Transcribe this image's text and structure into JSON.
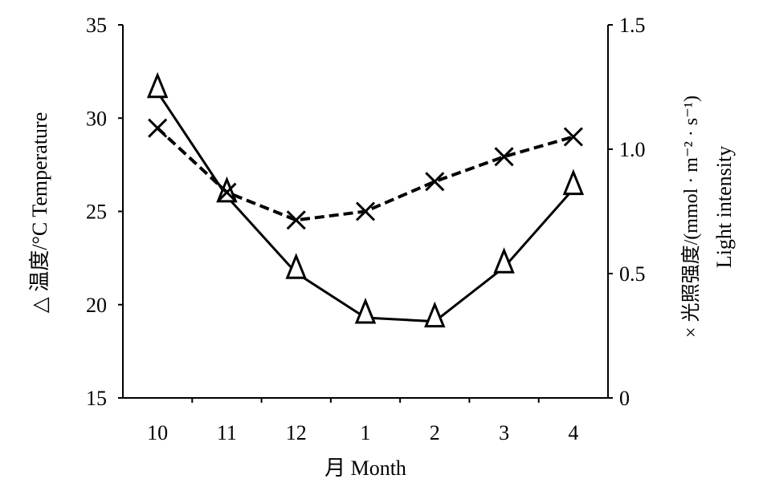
{
  "chart_data": {
    "type": "line",
    "categories": [
      "10",
      "11",
      "12",
      "1",
      "2",
      "3",
      "4"
    ],
    "xlabel": "月 Month",
    "ylabel_left": "△ 温度/°C Temperature",
    "ylabel_right_1": "× 光照强度/(mmol · m⁻² · s⁻¹)",
    "ylabel_right_2": "Light intensity",
    "ylim_left": [
      15,
      35
    ],
    "yticks_left": [
      15,
      20,
      25,
      30,
      35
    ],
    "ylim_right": [
      0,
      1.5
    ],
    "yticks_right": [
      "0",
      "0.5",
      "1.0",
      "1.5"
    ],
    "grid": false,
    "series": [
      {
        "name": "Temperature",
        "axis": "left",
        "marker": "triangle",
        "line": "solid",
        "values": [
          31.4,
          25.8,
          21.7,
          19.3,
          19.1,
          22.0,
          26.2
        ]
      },
      {
        "name": "Light intensity",
        "axis": "right",
        "marker": "cross",
        "line": "dashed",
        "values": [
          1.085,
          0.827,
          0.715,
          0.75,
          0.87,
          0.97,
          1.05
        ]
      }
    ]
  }
}
